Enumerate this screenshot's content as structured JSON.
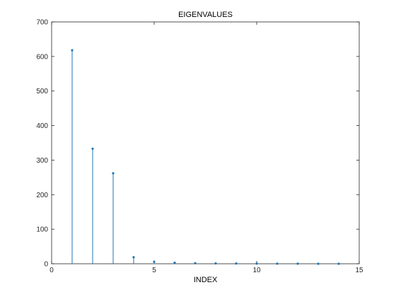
{
  "chart_data": {
    "type": "stem",
    "title": "EIGENVALUES",
    "xlabel": "INDEX",
    "ylabel": "",
    "xlim": [
      0,
      15
    ],
    "ylim": [
      0,
      700
    ],
    "xticks": [
      0,
      5,
      10,
      15
    ],
    "yticks": [
      0,
      100,
      200,
      300,
      400,
      500,
      600,
      700
    ],
    "grid": false,
    "series": [
      {
        "x": [
          1,
          2,
          3,
          4,
          5,
          6,
          7,
          8,
          9,
          10,
          11,
          12,
          13,
          14
        ],
        "values": [
          618,
          333,
          262,
          19,
          6,
          3,
          1.5,
          1,
          0.7,
          0.5,
          0.3,
          0.2,
          0.1,
          0.05
        ]
      }
    ],
    "colors": {
      "stem": "#1f77b4",
      "axis": "#262626",
      "background": "#ffffff"
    }
  }
}
